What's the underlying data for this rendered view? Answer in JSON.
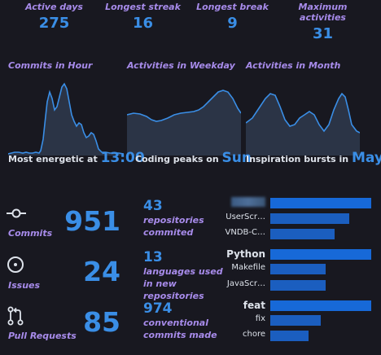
{
  "top_stats": [
    {
      "label": "Active days",
      "value": "275"
    },
    {
      "label": "Longest streak",
      "value": "16"
    },
    {
      "label": "Longest break",
      "value": "9"
    },
    {
      "label": "Maximum activities",
      "value": "31"
    }
  ],
  "charts": [
    {
      "title": "Commits in Hour",
      "caption_prefix": "Most energetic at",
      "caption_value": "13:00"
    },
    {
      "title": "Activities in Weekday",
      "caption_prefix": "Coding peaks on",
      "caption_value": "Sun"
    },
    {
      "title": "Activities in Month",
      "caption_prefix": "Inspiration bursts in",
      "caption_value": "May"
    }
  ],
  "left_stats": [
    {
      "label": "Commits",
      "value": "951",
      "icon": "commit-icon"
    },
    {
      "label": "Issues",
      "value": "24",
      "icon": "issue-icon"
    },
    {
      "label": "Pull Requests",
      "value": "85",
      "icon": "pull-request-icon"
    }
  ],
  "middle_stats": [
    {
      "value": "43",
      "line1": "repositories",
      "line2": "commited"
    },
    {
      "value": "13",
      "line1": "languages used",
      "line2": "in new repositories"
    },
    {
      "value": "974",
      "line1": "conventional",
      "line2": "commits made"
    }
  ],
  "bars": {
    "repositories": [
      {
        "name": "",
        "fraction": 1.0
      },
      {
        "name": "UserScr…",
        "fraction": 0.78
      },
      {
        "name": "VNDB-C…",
        "fraction": 0.64
      }
    ],
    "languages": [
      {
        "name": "Python",
        "fraction": 1.0
      },
      {
        "name": "Makefile",
        "fraction": 0.55
      },
      {
        "name": "JavaScr…",
        "fraction": 0.55
      }
    ],
    "commit_types": [
      {
        "name": "feat",
        "fraction": 1.0
      },
      {
        "name": "fix",
        "fraction": 0.5
      },
      {
        "name": "chore",
        "fraction": 0.38
      }
    ]
  },
  "colors": {
    "accent": "#3a8ee6",
    "label": "#a78bea",
    "bar": "#1769d8",
    "background": "#181820"
  }
}
